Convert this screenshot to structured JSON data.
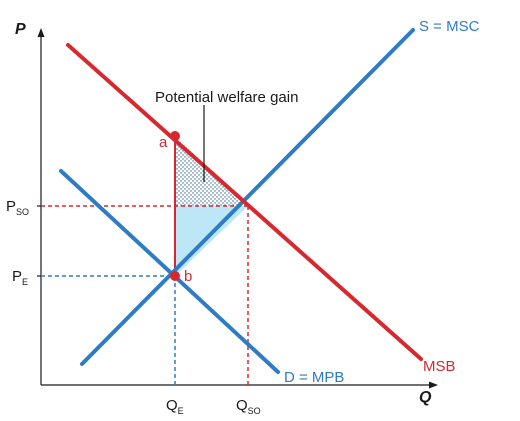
{
  "axes": {
    "y_label": "P",
    "x_label": "Q"
  },
  "curves": {
    "supply_label": "S = MSC",
    "demand_label": "D = MPB",
    "msb_label": "MSB"
  },
  "points": {
    "a_label": "a",
    "b_label": "b"
  },
  "annotation": {
    "text": "Potential welfare gain"
  },
  "ticks": {
    "p_so_main": "P",
    "p_so_sub": "SO",
    "p_e_main": "P",
    "p_e_sub": "E",
    "q_e_main": "Q",
    "q_e_sub": "E",
    "q_so_main": "Q",
    "q_so_sub": "SO"
  },
  "colors": {
    "blue_curve": "#2e7cc4",
    "red_curve": "#d7282f",
    "welfare_area_fill": "#bde6f6",
    "guide_line": "#d7282f",
    "guide_line_blue": "#2e7cc4",
    "axis": "#1a1a1a"
  }
}
